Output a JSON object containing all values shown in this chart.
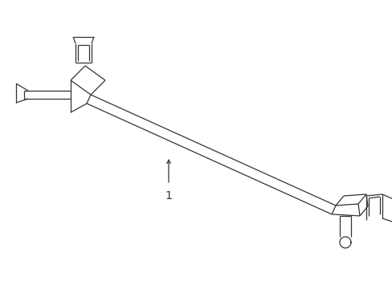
{
  "background_color": "#ffffff",
  "line_color": "#333333",
  "line_width": 0.9,
  "label": "1",
  "label_fontsize": 10,
  "figsize": [
    4.89,
    3.6
  ],
  "dpi": 100
}
